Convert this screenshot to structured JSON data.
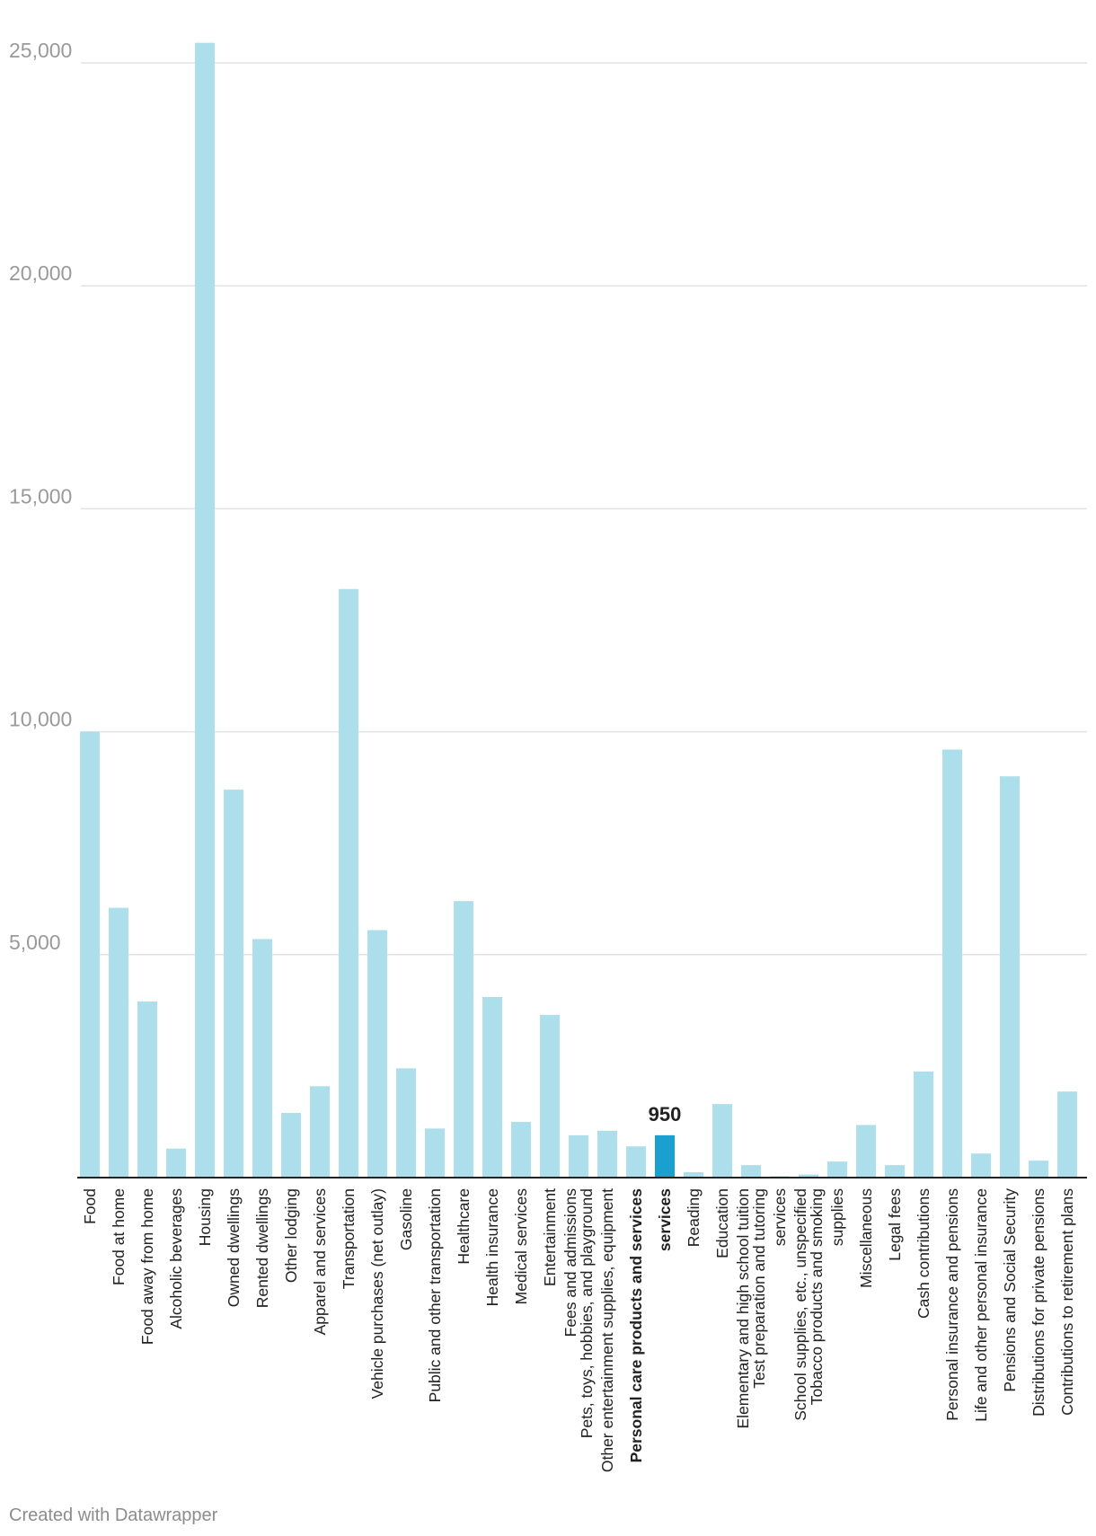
{
  "chart_data": {
    "type": "bar",
    "title": "",
    "xlabel": "",
    "ylabel": "",
    "ylim": [
      0,
      25000
    ],
    "yticks": [
      5000,
      10000,
      15000,
      20000,
      25000
    ],
    "ytick_labels": [
      "5,000",
      "10,000",
      "15,000",
      "20,000",
      "25,000"
    ],
    "grid": true,
    "highlight_index": 20,
    "highlight_label": "950",
    "colors": {
      "bar": "#acdeec",
      "highlight": "#1a9fcf",
      "grid": "#e2e2e2"
    },
    "categories": [
      "Food",
      "Food at home",
      "Food away from home",
      "Alcoholic beverages",
      "Housing",
      "Owned dwellings",
      "Rented dwellings",
      "Other lodging",
      "Apparel and services",
      "Transportation",
      "Vehicle purchases (net outlay)",
      "Gasoline",
      "Public and other transportation",
      "Healthcare",
      "Health insurance",
      "Medical services",
      "Entertainment",
      "Fees and admissions\nPets, toys, hobbies, and playground",
      "Other entertainment supplies, equipment",
      "Personal care products and services",
      "services",
      "Reading",
      "Education",
      "Elementary and high school tuition\nTest preparation and tutoring",
      "services",
      "School supplies, etc., unspecified\nTobacco products and smoking",
      "supplies",
      "Miscellaneous",
      "Legal fees",
      "Cash contributions",
      "Personal insurance and pensions",
      "Life and other personal insurance",
      "Pensions and Social Security",
      "Distributions for private pensions",
      "Contributions to retirement plans"
    ],
    "values": [
      10000,
      6050,
      3950,
      650,
      25450,
      8700,
      5350,
      1450,
      2050,
      13200,
      5550,
      2450,
      1100,
      6200,
      4050,
      1250,
      3650,
      950,
      1050,
      700,
      950,
      120,
      1650,
      280,
      30,
      70,
      360,
      1180,
      280,
      2380,
      9600,
      540,
      9000,
      380,
      1930
    ]
  },
  "footer": {
    "credit": "Created with Datawrapper"
  }
}
